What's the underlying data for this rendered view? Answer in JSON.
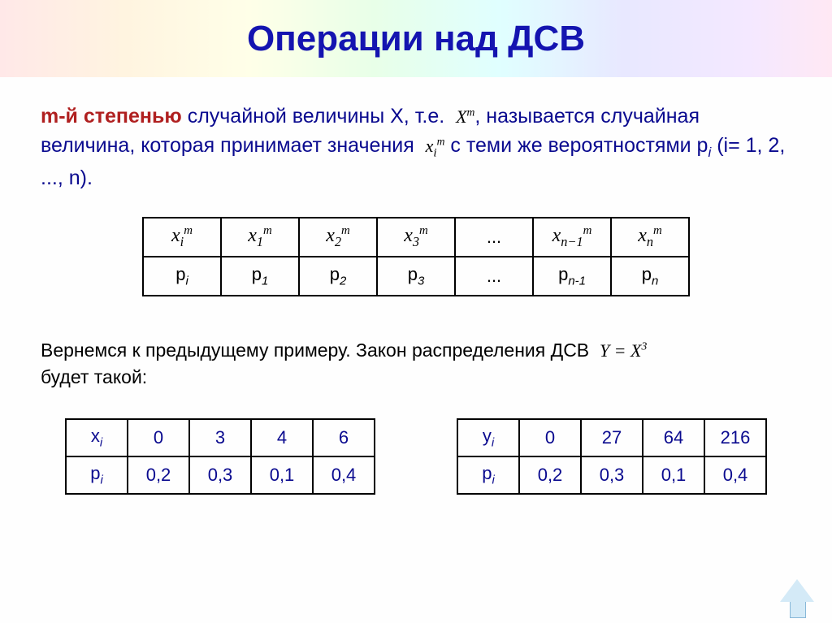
{
  "title": "Операции над ДСВ",
  "definition": {
    "part1_hl": "m-й степенью",
    "part2": " случайной величины X, т.е. ",
    "expr": "X",
    "expr_sup": "m",
    "part3": ", называется случайная величина, которая принимает значения ",
    "xi": "x",
    "xi_sub": "i",
    "xi_sup": "m",
    "part4": " с теми же вероятностями p",
    "part4_sub": "i",
    "part5": " (i= 1, 2, ..., n)."
  },
  "table1": {
    "row1_head": "xᵢᵐ",
    "row1": [
      "x₁ᵐ",
      "x₂ᵐ",
      "x₃ᵐ",
      "...",
      "xₙ₋₁ᵐ",
      "xₙᵐ"
    ],
    "row2_head": "pᵢ",
    "row2": [
      "p₁",
      "p₂",
      "p₃",
      "...",
      "pₙ₋₁",
      "pₙ"
    ]
  },
  "example": {
    "line1": "Вернемся к предыдущему примеру. Закон распределения ДСВ ",
    "eq": "Y = X",
    "eq_sup": "3",
    "line2": "будет такой:"
  },
  "tableX": {
    "head1": "xᵢ",
    "head2": "pᵢ",
    "x": [
      "0",
      "3",
      "4",
      "6"
    ],
    "p": [
      "0,2",
      "0,3",
      "0,1",
      "0,4"
    ]
  },
  "tableY": {
    "head1": "yᵢ",
    "head2": "pᵢ",
    "y": [
      "0",
      "27",
      "64",
      "216"
    ],
    "p": [
      "0,2",
      "0,3",
      "0,1",
      "0,4"
    ]
  },
  "colors": {
    "title": "#1414b0",
    "body_blue": "#0a0a8f",
    "highlight": "#b02020",
    "black": "#000000",
    "border": "#000000"
  }
}
